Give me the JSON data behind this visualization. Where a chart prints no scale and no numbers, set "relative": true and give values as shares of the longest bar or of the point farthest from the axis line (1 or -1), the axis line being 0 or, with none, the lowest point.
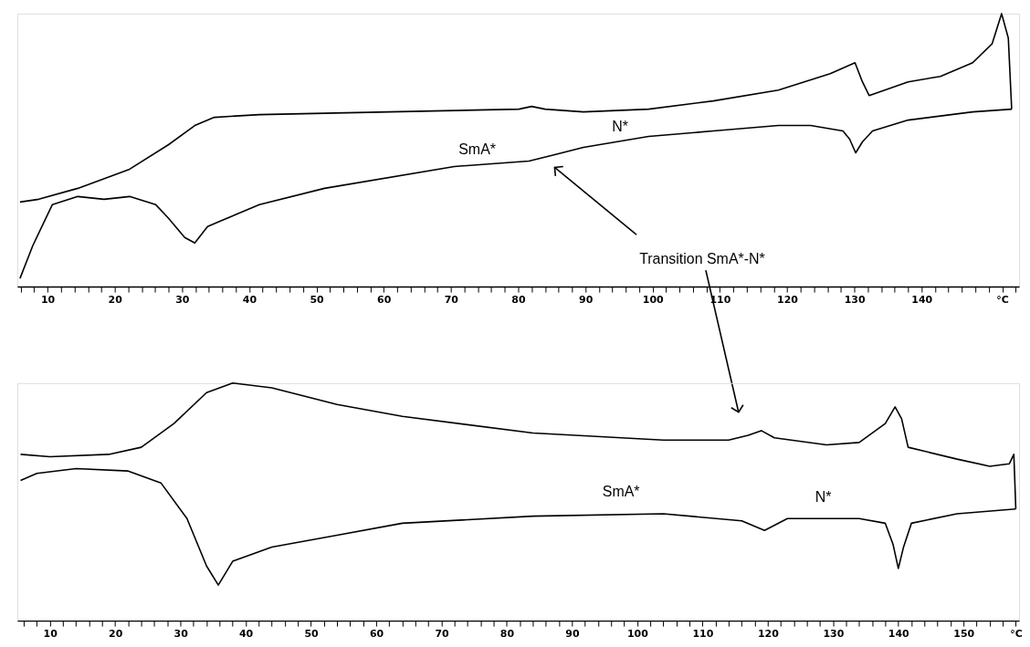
{
  "chart_data": [
    {
      "type": "line",
      "relative": true,
      "legend": false,
      "grid": false,
      "marker": "none",
      "line_style": "solid",
      "xlim": [
        5.5,
        154.5
      ],
      "xticks": [
        {
          "value": 6,
          "label": null
        },
        {
          "value": 8,
          "label": null
        },
        10,
        {
          "value": 12,
          "label": null
        },
        {
          "value": 14,
          "label": null
        },
        {
          "value": 16,
          "label": null
        },
        {
          "value": 18,
          "label": null
        },
        20,
        {
          "value": 22,
          "label": null
        },
        {
          "value": 24,
          "label": null
        },
        {
          "value": 26,
          "label": null
        },
        {
          "value": 28,
          "label": null
        },
        30,
        {
          "value": 32,
          "label": null
        },
        {
          "value": 34,
          "label": null
        },
        {
          "value": 36,
          "label": null
        },
        {
          "value": 38,
          "label": null
        },
        40,
        {
          "value": 42,
          "label": null
        },
        {
          "value": 44,
          "label": null
        },
        {
          "value": 46,
          "label": null
        },
        {
          "value": 48,
          "label": null
        },
        50,
        {
          "value": 52,
          "label": null
        },
        {
          "value": 54,
          "label": null
        },
        {
          "value": 56,
          "label": null
        },
        {
          "value": 58,
          "label": null
        },
        60,
        {
          "value": 62,
          "label": null
        },
        {
          "value": 64,
          "label": null
        },
        {
          "value": 66,
          "label": null
        },
        {
          "value": 68,
          "label": null
        },
        70,
        {
          "value": 72,
          "label": null
        },
        {
          "value": 74,
          "label": null
        },
        {
          "value": 76,
          "label": null
        },
        {
          "value": 78,
          "label": null
        },
        80,
        {
          "value": 82,
          "label": null
        },
        {
          "value": 84,
          "label": null
        },
        {
          "value": 86,
          "label": null
        },
        {
          "value": 88,
          "label": null
        },
        90,
        {
          "value": 92,
          "label": null
        },
        {
          "value": 94,
          "label": null
        },
        {
          "value": 96,
          "label": null
        },
        {
          "value": 98,
          "label": null
        },
        100,
        {
          "value": 102,
          "label": null
        },
        {
          "value": 104,
          "label": null
        },
        {
          "value": 106,
          "label": null
        },
        {
          "value": 108,
          "label": null
        },
        110,
        {
          "value": 112,
          "label": null
        },
        {
          "value": 114,
          "label": null
        },
        {
          "value": 116,
          "label": null
        },
        {
          "value": 118,
          "label": null
        },
        120,
        {
          "value": 122,
          "label": null
        },
        {
          "value": 124,
          "label": null
        },
        {
          "value": 126,
          "label": null
        },
        {
          "value": 128,
          "label": null
        },
        130,
        {
          "value": 132,
          "label": null
        },
        {
          "value": 134,
          "label": null
        },
        {
          "value": 136,
          "label": null
        },
        {
          "value": 138,
          "label": null
        },
        140,
        {
          "value": 142,
          "label": null
        },
        {
          "value": 144,
          "label": null
        },
        {
          "value": 146,
          "label": null
        },
        {
          "value": 148,
          "label": null
        },
        {
          "value": 150,
          "label": null
        },
        {
          "value": 152,
          "label": "°C"
        },
        {
          "value": 154,
          "label": null
        }
      ],
      "tick_labels": "x",
      "series": [
        {
          "color": "#000000",
          "x": [
            5.9,
            8.7,
            14.5,
            22.2,
            28.0,
            31.9,
            34.8,
            41.5,
            60.8,
            80.1,
            82.0,
            84.0,
            89.7,
            99.4,
            109.0,
            118.7,
            126.4,
            130.1,
            131.2,
            132.2,
            138.0,
            142.8,
            147.6,
            150.5,
            151.9,
            152.9,
            153.4
          ],
          "values": [
            0.31,
            0.32,
            0.36,
            0.43,
            0.52,
            0.59,
            0.62,
            0.63,
            0.64,
            0.65,
            0.66,
            0.65,
            0.64,
            0.65,
            0.68,
            0.72,
            0.78,
            0.82,
            0.75,
            0.7,
            0.75,
            0.77,
            0.82,
            0.89,
            1.0,
            0.91,
            0.65
          ]
        },
        {
          "color": "#000000",
          "x": [
            5.9,
            7.8,
            10.7,
            14.5,
            18.4,
            22.2,
            26.1,
            28.0,
            30.4,
            31.9,
            33.8,
            35.7,
            41.5,
            51.2,
            70.5,
            81.6,
            84.9,
            89.7,
            99.4,
            109.0,
            118.7,
            123.5,
            128.3,
            129.3,
            130.2,
            131.2,
            132.7,
            138.0,
            147.6,
            153.4
          ],
          "values": [
            0.03,
            0.15,
            0.3,
            0.33,
            0.32,
            0.33,
            0.3,
            0.25,
            0.18,
            0.16,
            0.22,
            0.24,
            0.3,
            0.36,
            0.44,
            0.46,
            0.48,
            0.51,
            0.55,
            0.57,
            0.59,
            0.59,
            0.57,
            0.54,
            0.49,
            0.53,
            0.57,
            0.61,
            0.64,
            0.65
          ]
        }
      ],
      "annotations": [
        "SmA*",
        "N*",
        "Transition SmA*-N*"
      ]
    },
    {
      "type": "line",
      "relative": true,
      "legend": false,
      "grid": false,
      "marker": "none",
      "line_style": "solid",
      "xlim": [
        5,
        158.5
      ],
      "xticks": [
        {
          "value": 6,
          "label": null
        },
        {
          "value": 8,
          "label": null
        },
        10,
        {
          "value": 12,
          "label": null
        },
        {
          "value": 14,
          "label": null
        },
        {
          "value": 16,
          "label": null
        },
        {
          "value": 18,
          "label": null
        },
        20,
        {
          "value": 22,
          "label": null
        },
        {
          "value": 24,
          "label": null
        },
        {
          "value": 26,
          "label": null
        },
        {
          "value": 28,
          "label": null
        },
        30,
        {
          "value": 32,
          "label": null
        },
        {
          "value": 34,
          "label": null
        },
        {
          "value": 36,
          "label": null
        },
        {
          "value": 38,
          "label": null
        },
        40,
        {
          "value": 42,
          "label": null
        },
        {
          "value": 44,
          "label": null
        },
        {
          "value": 46,
          "label": null
        },
        {
          "value": 48,
          "label": null
        },
        50,
        {
          "value": 52,
          "label": null
        },
        {
          "value": 54,
          "label": null
        },
        {
          "value": 56,
          "label": null
        },
        {
          "value": 58,
          "label": null
        },
        60,
        {
          "value": 62,
          "label": null
        },
        {
          "value": 64,
          "label": null
        },
        {
          "value": 66,
          "label": null
        },
        {
          "value": 68,
          "label": null
        },
        70,
        {
          "value": 72,
          "label": null
        },
        {
          "value": 74,
          "label": null
        },
        {
          "value": 76,
          "label": null
        },
        {
          "value": 78,
          "label": null
        },
        80,
        {
          "value": 82,
          "label": null
        },
        {
          "value": 84,
          "label": null
        },
        {
          "value": 86,
          "label": null
        },
        {
          "value": 88,
          "label": null
        },
        90,
        {
          "value": 92,
          "label": null
        },
        {
          "value": 94,
          "label": null
        },
        {
          "value": 96,
          "label": null
        },
        {
          "value": 98,
          "label": null
        },
        100,
        {
          "value": 102,
          "label": null
        },
        {
          "value": 104,
          "label": null
        },
        {
          "value": 106,
          "label": null
        },
        {
          "value": 108,
          "label": null
        },
        110,
        {
          "value": 112,
          "label": null
        },
        {
          "value": 114,
          "label": null
        },
        {
          "value": 116,
          "label": null
        },
        {
          "value": 118,
          "label": null
        },
        120,
        {
          "value": 122,
          "label": null
        },
        {
          "value": 124,
          "label": null
        },
        {
          "value": 126,
          "label": null
        },
        {
          "value": 128,
          "label": null
        },
        130,
        {
          "value": 132,
          "label": null
        },
        {
          "value": 134,
          "label": null
        },
        {
          "value": 136,
          "label": null
        },
        {
          "value": 138,
          "label": null
        },
        140,
        {
          "value": 142,
          "label": null
        },
        {
          "value": 144,
          "label": null
        },
        {
          "value": 146,
          "label": null
        },
        {
          "value": 148,
          "label": null
        },
        150,
        {
          "value": 152,
          "label": null
        },
        {
          "value": 154,
          "label": null
        },
        {
          "value": 156,
          "label": null
        },
        {
          "value": 158,
          "label": "°C"
        }
      ],
      "tick_labels": "x",
      "series": [
        {
          "color": "#000000",
          "x": [
            5.5,
            10,
            19,
            24,
            29,
            34,
            38,
            44,
            54,
            64,
            84,
            104,
            114,
            117,
            119,
            121,
            129,
            134,
            138,
            139.5,
            140.5,
            141.5,
            149,
            154,
            157,
            157.7,
            158
          ],
          "values": [
            0.7,
            0.69,
            0.7,
            0.73,
            0.83,
            0.96,
            1.0,
            0.98,
            0.91,
            0.86,
            0.79,
            0.76,
            0.76,
            0.78,
            0.8,
            0.77,
            0.74,
            0.75,
            0.83,
            0.9,
            0.85,
            0.73,
            0.68,
            0.65,
            0.66,
            0.7,
            0.47
          ]
        },
        {
          "color": "#000000",
          "x": [
            5.5,
            8,
            14,
            22,
            27,
            31,
            34,
            35.8,
            38,
            44,
            54,
            64,
            84,
            104,
            116,
            119.5,
            123,
            134,
            138,
            139.2,
            140,
            140.8,
            142,
            149,
            158
          ],
          "values": [
            0.59,
            0.62,
            0.64,
            0.63,
            0.58,
            0.43,
            0.23,
            0.15,
            0.25,
            0.31,
            0.36,
            0.41,
            0.44,
            0.45,
            0.42,
            0.38,
            0.43,
            0.43,
            0.41,
            0.32,
            0.22,
            0.31,
            0.41,
            0.45,
            0.47
          ]
        }
      ],
      "annotations": [
        "SmA*",
        "N*"
      ]
    }
  ]
}
